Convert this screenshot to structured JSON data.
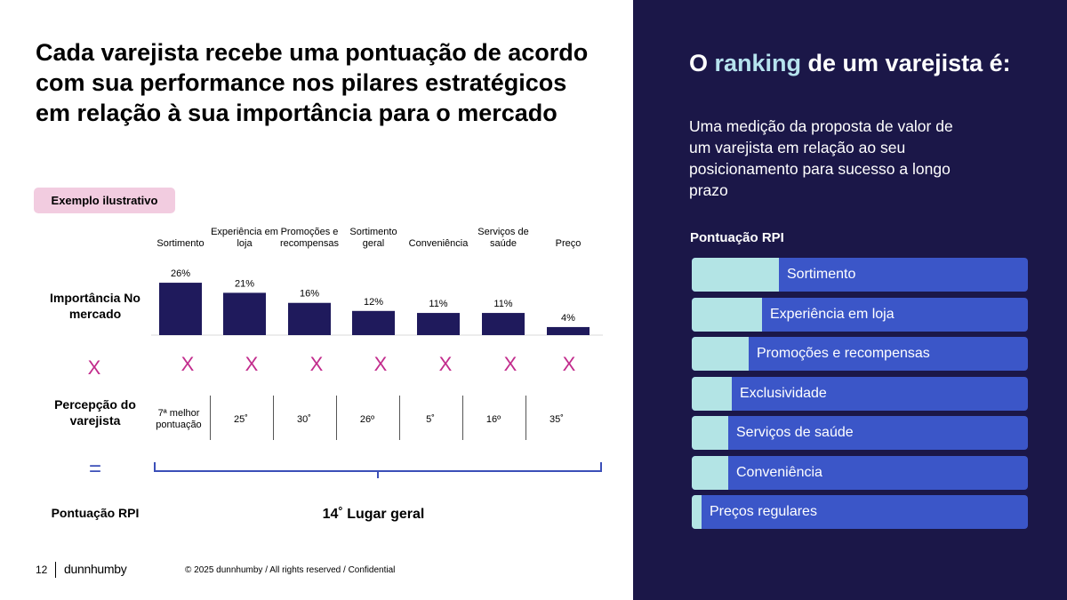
{
  "title": "Cada varejista recebe uma pontuação de acordo com sua performance nos pilares estratégicos em relação à sua importância para o mercado",
  "badge": "Exemplo ilustrativo",
  "row_labels": {
    "importance": "Importância No mercado",
    "perception": "Percepção do varejista",
    "score": "Pontuação RPI"
  },
  "operators": {
    "multiply": "X",
    "equals": "="
  },
  "pillars": [
    {
      "header": "Sortimento",
      "importance_label": "26%",
      "perception": "7ª melhor pontuação"
    },
    {
      "header": "Experiência em loja",
      "importance_label": "21%",
      "perception": "25˚"
    },
    {
      "header": "Promoções e recompensas",
      "importance_label": "16%",
      "perception": "30˚"
    },
    {
      "header": "Sortimento geral",
      "importance_label": "12%",
      "perception": "26º"
    },
    {
      "header": "Conveniência",
      "importance_label": "11%",
      "perception": "5˚"
    },
    {
      "header": "Serviços de saúde",
      "importance_label": "11%",
      "perception": "16º"
    },
    {
      "header": "Preço",
      "importance_label": "4%",
      "perception": "35˚"
    }
  ],
  "chart_data": {
    "type": "bar",
    "categories": [
      "Sortimento",
      "Experiência em loja",
      "Promoções e recompensas",
      "Sortimento geral",
      "Conveniência",
      "Serviços de saúde",
      "Preço"
    ],
    "values": [
      26,
      21,
      16,
      12,
      11,
      11,
      4
    ],
    "data_labels": [
      "26%",
      "21%",
      "16%",
      "12%",
      "11%",
      "11%",
      "4%"
    ],
    "bar_color": "#1f1a5c",
    "ylim": [
      0,
      30
    ],
    "grid": false
  },
  "overall": "14˚ Lugar geral",
  "footer": {
    "page": "12",
    "logo": "dunnhumby",
    "copyright": "© 2025 dunnhumby / All rights reserved / Confidential"
  },
  "right_panel": {
    "title_pre": "O ",
    "title_accent": "ranking",
    "title_post": " de um varejista é:",
    "subtitle": "Uma medição da proposta de valor de um varejista em relação ao seu posicionamento para sucesso a longo prazo",
    "rpi_label": "Pontuação RPI",
    "rpi_items": [
      {
        "label": "Sortimento",
        "level": 0.26
      },
      {
        "label": "Experiência em loja",
        "level": 0.21
      },
      {
        "label": "Promoções e recompensas",
        "level": 0.17
      },
      {
        "label": "Exclusividade",
        "level": 0.12
      },
      {
        "label": "Serviços de saúde",
        "level": 0.11
      },
      {
        "label": "Conveniência",
        "level": 0.11
      },
      {
        "label": "Preços regulares",
        "level": 0.03
      }
    ],
    "colors": {
      "background": "#1b1748",
      "bar": "#3b56c8",
      "fill": "#b3e4e5",
      "accent": "#b6e3ee"
    }
  }
}
